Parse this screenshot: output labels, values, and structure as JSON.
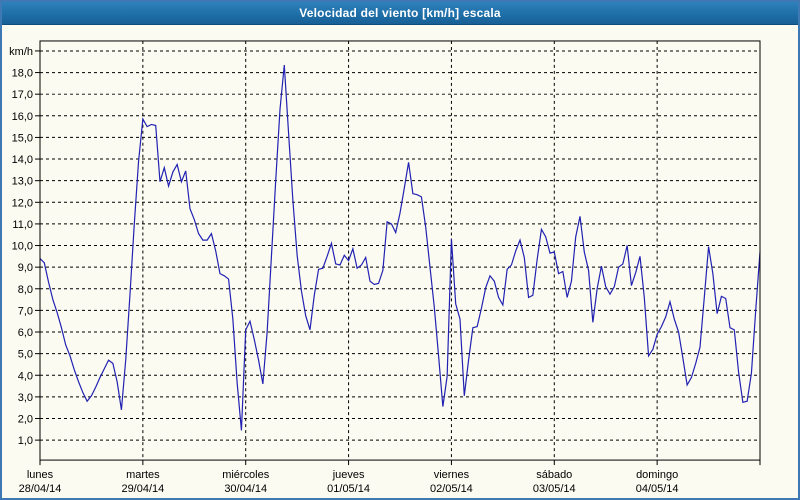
{
  "title": "Velocidad del viento [km/h] escala",
  "colors": {
    "frame": "#3e79b4",
    "titlebar": "#1f6fa9",
    "titlebar_light": "#2e81ba",
    "titlebar_dark2": "#185f95",
    "titlebar_dark": "#0f4d7e",
    "bg": "#fbfbf2",
    "line": "#2222b2",
    "grid": "#000000",
    "text": "#000000"
  },
  "chart_data": {
    "type": "line",
    "title": "Velocidad del viento [km/h] escala",
    "ylabel": "km/h",
    "xlabel": "",
    "ylim": [
      0.1,
      19.5
    ],
    "grid": "dashed",
    "legend": "none",
    "sampling": "hourly",
    "points_per_day": 24,
    "y_tick_step": 1.0,
    "y_tick_labels": [
      "18,0",
      "17,0",
      "16,0",
      "15,0",
      "14,0",
      "13,0",
      "12,0",
      "11,0",
      "10,0",
      "9,0",
      "8,0",
      "7,0",
      "6,0",
      "5,0",
      "4,0",
      "3,0",
      "2,0",
      "1,0"
    ],
    "x_days": [
      {
        "name": "lunes",
        "date": "28/04/14"
      },
      {
        "name": "martes",
        "date": "29/04/14"
      },
      {
        "name": "miércoles",
        "date": "30/04/14"
      },
      {
        "name": "jueves",
        "date": "01/05/14"
      },
      {
        "name": "viernes",
        "date": "02/05/14"
      },
      {
        "name": "sábado",
        "date": "03/05/14"
      },
      {
        "name": "domingo",
        "date": "04/05/14"
      }
    ],
    "values": [
      9.4,
      9.2,
      8.3,
      7.5,
      6.9,
      6.2,
      5.4,
      4.9,
      4.25,
      3.7,
      3.2,
      2.8,
      3.05,
      3.45,
      3.9,
      4.3,
      4.7,
      4.55,
      3.7,
      2.4,
      4.7,
      7.75,
      11.0,
      13.9,
      15.85,
      15.5,
      15.6,
      15.55,
      12.95,
      13.6,
      12.75,
      13.4,
      13.75,
      12.95,
      13.45,
      11.7,
      11.2,
      10.55,
      10.25,
      10.25,
      10.55,
      9.75,
      8.7,
      8.6,
      8.45,
      6.6,
      3.65,
      1.45,
      6.1,
      6.5,
      5.65,
      4.7,
      3.6,
      6.0,
      9.5,
      13.0,
      16.3,
      18.35,
      15.2,
      12.1,
      9.55,
      7.9,
      6.75,
      6.1,
      7.7,
      8.9,
      8.95,
      9.5,
      10.1,
      9.15,
      9.1,
      9.55,
      9.3,
      9.85,
      8.95,
      9.1,
      9.45,
      8.35,
      8.2,
      8.25,
      8.85,
      11.1,
      11.0,
      10.6,
      11.5,
      12.65,
      13.85,
      12.4,
      12.35,
      12.25,
      10.85,
      9.0,
      7.15,
      4.9,
      2.55,
      3.95,
      10.3,
      7.3,
      6.6,
      3.05,
      4.7,
      6.2,
      6.25,
      7.1,
      8.05,
      8.6,
      8.35,
      7.6,
      7.25,
      8.9,
      9.1,
      9.75,
      10.25,
      9.45,
      7.6,
      7.7,
      9.35,
      10.75,
      10.4,
      9.65,
      9.7,
      8.7,
      8.8,
      7.6,
      8.35,
      10.4,
      11.35,
      9.7,
      8.85,
      6.45,
      8.0,
      9.05,
      8.1,
      7.75,
      8.1,
      9.0,
      9.15,
      10.0,
      8.15,
      8.75,
      9.5,
      7.6,
      4.9,
      5.2,
      5.9,
      6.25,
      6.7,
      7.4,
      6.6,
      6.0,
      4.8,
      3.55,
      3.9,
      4.55,
      5.3,
      7.6,
      9.95,
      8.7,
      6.85,
      7.65,
      7.55,
      6.2,
      6.1,
      4.15,
      2.75,
      2.8,
      4.1,
      7.0,
      9.7
    ]
  }
}
